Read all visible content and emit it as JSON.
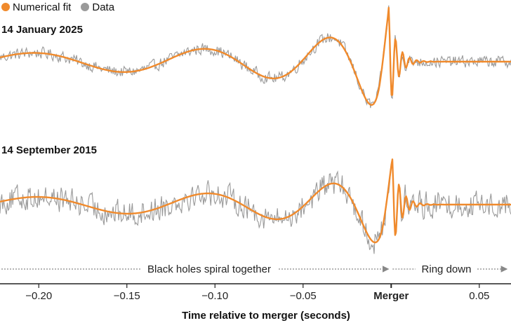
{
  "legend": {
    "fit_label": "Numerical fit",
    "data_label": "Data"
  },
  "colors": {
    "fit": "#f08a2c",
    "data": "#9a9a9a",
    "axis": "#222222",
    "annotation": "#888888"
  },
  "annotations": {
    "inspiral": "Black holes spiral together",
    "ringdown": "Ring down"
  },
  "chart_data": {
    "type": "line",
    "xlabel": "Time relative to merger (seconds)",
    "xlim": [
      -0.222,
      0.068
    ],
    "x_ticks": [
      {
        "value": -0.2,
        "label": "−0.20",
        "bold": false
      },
      {
        "value": -0.15,
        "label": "−0.15",
        "bold": false
      },
      {
        "value": -0.1,
        "label": "−0.10",
        "bold": false
      },
      {
        "value": -0.05,
        "label": "−0.05",
        "bold": false
      },
      {
        "value": 0.0,
        "label": "Merger",
        "bold": true
      },
      {
        "value": 0.05,
        "label": "0.05",
        "bold": false
      }
    ],
    "panels": [
      {
        "title": "14 January 2025",
        "peak_time": -0.0015,
        "peak_amplitude": 1.0,
        "noise_level": 0.13,
        "series": [
          {
            "name": "Numerical fit",
            "kind": "fit"
          },
          {
            "name": "Data",
            "kind": "data"
          }
        ]
      },
      {
        "title": "14 September 2015",
        "peak_time": 0.0005,
        "peak_amplitude": 1.0,
        "noise_level": 0.33,
        "series": [
          {
            "name": "Numerical fit",
            "kind": "fit"
          },
          {
            "name": "Data",
            "kind": "data"
          }
        ]
      }
    ]
  }
}
